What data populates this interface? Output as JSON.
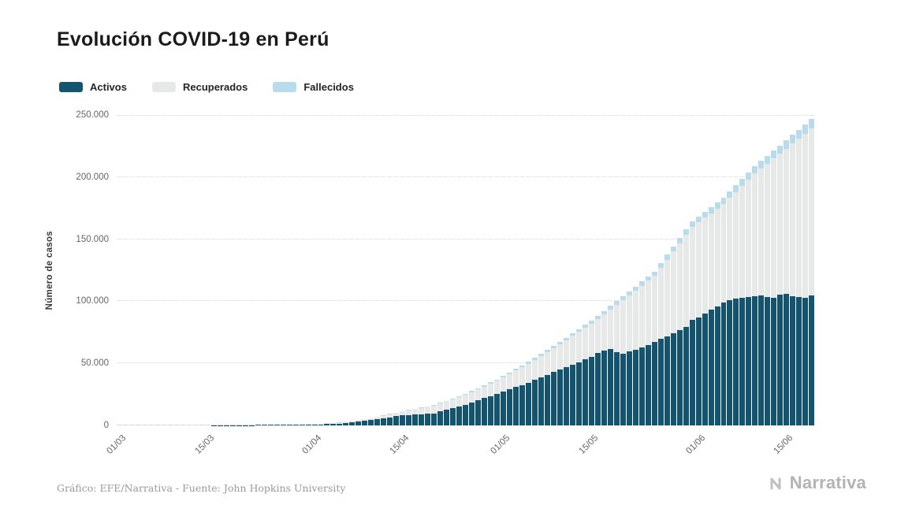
{
  "title": "Evolución COVID-19 en Perú",
  "legend": {
    "items": [
      {
        "label": "Activos"
      },
      {
        "label": "Recuperados"
      },
      {
        "label": "Fallecidos"
      }
    ]
  },
  "footer": {
    "source": "Gráfico: EFE/Narrativa - Fuente: John Hopkins University",
    "brand": "Narrativa"
  },
  "chart_data": {
    "type": "bar",
    "stacked": true,
    "title": "Evolución COVID-19 en Perú",
    "xlabel": "",
    "ylabel": "Número de casos",
    "ylim": [
      0,
      250000
    ],
    "grid": true,
    "legend_position": "top-left",
    "ytick_labels": [
      "0",
      "50.000",
      "100.000",
      "150.000",
      "200.000",
      "250.000"
    ],
    "xticks": [
      {
        "label": "01/03",
        "index": 0
      },
      {
        "label": "15/03",
        "index": 14
      },
      {
        "label": "01/04",
        "index": 31
      },
      {
        "label": "15/04",
        "index": 45
      },
      {
        "label": "01/05",
        "index": 61
      },
      {
        "label": "15/05",
        "index": 75
      },
      {
        "label": "01/06",
        "index": 92
      },
      {
        "label": "15/06",
        "index": 106
      }
    ],
    "series": [
      {
        "name": "Activos",
        "color": "#15546f",
        "values": [
          0,
          0,
          0,
          0,
          0,
          1,
          4,
          6,
          9,
          11,
          17,
          24,
          30,
          36,
          43,
          81,
          119,
          158,
          195,
          230,
          277,
          323,
          368,
          411,
          455,
          486,
          517,
          548,
          579,
          610,
          641,
          754,
          869,
          983,
          1097,
          1211,
          1798,
          2385,
          2973,
          3560,
          4147,
          4940,
          5733,
          6527,
          7320,
          8113,
          8443,
          8772,
          9101,
          9430,
          9760,
          11116,
          12473,
          13830,
          15187,
          16543,
          18339,
          20134,
          21929,
          23724,
          25520,
          27282,
          29045,
          30807,
          32570,
          34332,
          36500,
          38668,
          40836,
          43004,
          45172,
          47129,
          49086,
          51042,
          52999,
          54956,
          58500,
          60500,
          61500,
          59000,
          58000,
          59500,
          61000,
          63000,
          65000,
          67000,
          69500,
          72000,
          74500,
          77000,
          79500,
          85000,
          87000,
          90000,
          93000,
          96000,
          99000,
          101000,
          102000,
          103000,
          103500,
          104000,
          104500,
          103500,
          102500,
          105500,
          106000,
          104000,
          103500,
          103000,
          104500
        ]
      },
      {
        "name": "Recuperados",
        "color": "#e7e9e9",
        "values": [
          0,
          0,
          0,
          0,
          0,
          0,
          0,
          0,
          0,
          0,
          0,
          0,
          0,
          0,
          0,
          0,
          0,
          0,
          0,
          1,
          2,
          4,
          8,
          12,
          16,
          79,
          142,
          205,
          268,
          331,
          394,
          513,
          631,
          750,
          868,
          987,
          1103,
          1220,
          1336,
          1453,
          1569,
          1877,
          2185,
          2492,
          2800,
          3108,
          3710,
          4313,
          4915,
          5518,
          6120,
          6514,
          6907,
          7301,
          7694,
          8088,
          8551,
          9015,
          9478,
          9942,
          10405,
          11407,
          12409,
          13410,
          14412,
          15413,
          16380,
          17346,
          18313,
          19279,
          20246,
          21626,
          23006,
          24387,
          25767,
          27147,
          27382,
          29160,
          31939,
          38217,
          42996,
          45367,
          47738,
          49609,
          51479,
          53350,
          57454,
          61558,
          65660,
          69764,
          73867,
          74970,
          76609,
          77249,
          77888,
          78528,
          79167,
          82118,
          86068,
          90019,
          94469,
          98920,
          102446,
          107471,
          112497,
          113522,
          117048,
          123014,
          127479,
          131945,
          134410
        ]
      },
      {
        "name": "Fallecidos",
        "color": "#b9dcec",
        "values": [
          0,
          0,
          0,
          0,
          0,
          0,
          0,
          0,
          0,
          0,
          0,
          0,
          0,
          0,
          0,
          0,
          0,
          0,
          1,
          3,
          4,
          5,
          6,
          8,
          9,
          13,
          16,
          20,
          23,
          27,
          30,
          41,
          51,
          62,
          73,
          83,
          103,
          122,
          142,
          161,
          181,
          196,
          210,
          225,
          239,
          254,
          292,
          330,
          369,
          407,
          445,
          496,
          547,
          598,
          649,
          700,
          770,
          840,
          911,
          981,
          1051,
          1130,
          1208,
          1287,
          1365,
          1444,
          1533,
          1622,
          1711,
          1800,
          1889,
          1990,
          2090,
          2191,
          2291,
          2392,
          2518,
          2645,
          2771,
          2898,
          3024,
          3145,
          3266,
          3387,
          3508,
          3629,
          3775,
          3921,
          4068,
          4214,
          4360,
          4506,
          4611,
          4716,
          4821,
          4926,
          5031,
          5205,
          5380,
          5554,
          5729,
          5903,
          6060,
          6217,
          6374,
          6531,
          6688,
          6922,
          7157,
          7391,
          7626
        ]
      }
    ]
  }
}
